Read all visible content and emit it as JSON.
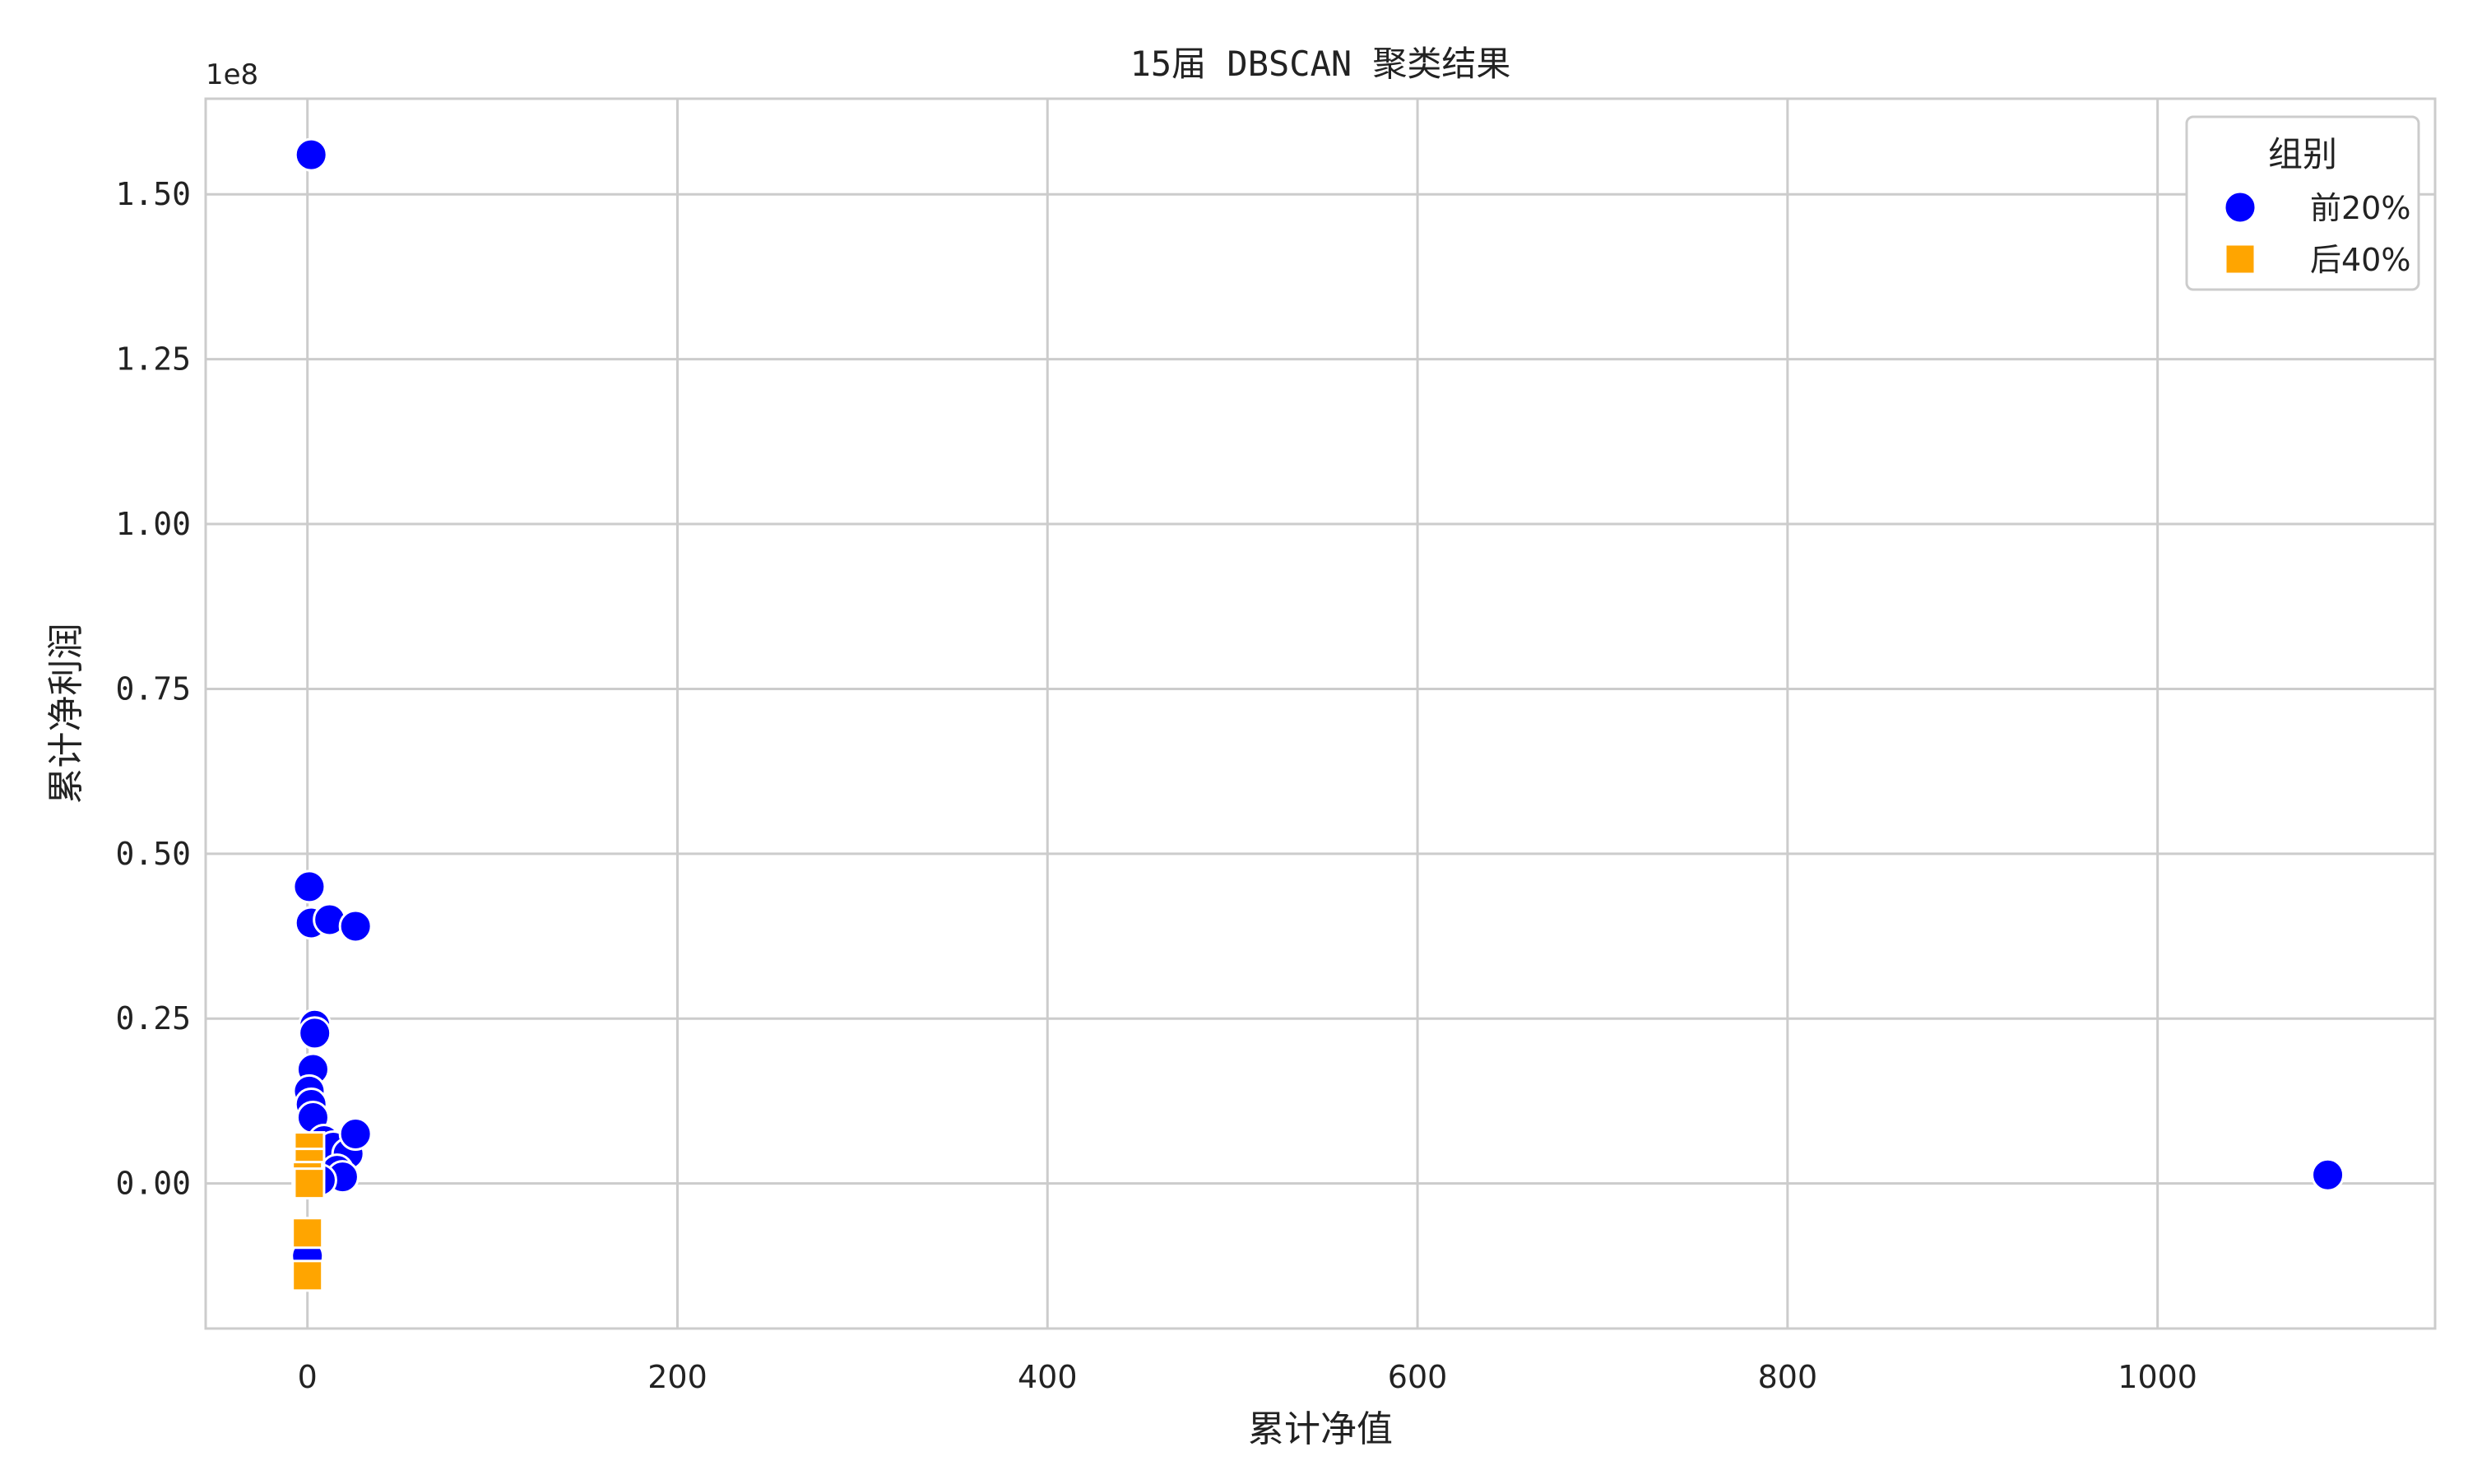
{
  "chart_data": {
    "type": "scatter",
    "title": "15届 DBSCAN 聚类结果",
    "xlabel": "累计净值",
    "ylabel": "累计净利润",
    "y_offset_label": "1e8",
    "xlim": [
      -55,
      1150
    ],
    "ylim": [
      -0.22,
      1.645
    ],
    "xticks": [
      0,
      200,
      400,
      600,
      800,
      1000
    ],
    "xtick_labels": [
      "0",
      "200",
      "400",
      "600",
      "800",
      "1000"
    ],
    "yticks": [
      0.0,
      0.25,
      0.5,
      0.75,
      1.0,
      1.25,
      1.5
    ],
    "ytick_labels": [
      "0.00",
      "0.25",
      "0.50",
      "0.75",
      "1.00",
      "1.25",
      "1.50"
    ],
    "grid": true,
    "legend": {
      "title": "组别",
      "placement": "top-right"
    },
    "series": [
      {
        "name": "前20%",
        "marker": "circle",
        "color": "#0000ff",
        "points": [
          {
            "x": 2,
            "y": 1.56
          },
          {
            "x": 1,
            "y": 0.45
          },
          {
            "x": 2,
            "y": 0.395
          },
          {
            "x": 12,
            "y": 0.4
          },
          {
            "x": 26,
            "y": 0.39
          },
          {
            "x": 4,
            "y": 0.24
          },
          {
            "x": 4,
            "y": 0.228
          },
          {
            "x": 3,
            "y": 0.173
          },
          {
            "x": 1,
            "y": 0.14
          },
          {
            "x": 2,
            "y": 0.12
          },
          {
            "x": 3,
            "y": 0.1
          },
          {
            "x": 9,
            "y": 0.065
          },
          {
            "x": 14,
            "y": 0.055
          },
          {
            "x": 22,
            "y": 0.045
          },
          {
            "x": 26,
            "y": 0.075
          },
          {
            "x": 16,
            "y": 0.02
          },
          {
            "x": 19,
            "y": 0.01
          },
          {
            "x": 7,
            "y": 0.005
          },
          {
            "x": 0,
            "y": -0.11
          },
          {
            "x": 1092,
            "y": 0.013
          }
        ]
      },
      {
        "name": "后40%",
        "marker": "square",
        "color": "#ffa500",
        "points": [
          {
            "x": 1,
            "y": 0.055
          },
          {
            "x": 1,
            "y": 0.03
          },
          {
            "x": 0,
            "y": 0.01
          },
          {
            "x": 1,
            "y": 0.0
          },
          {
            "x": 0,
            "y": -0.075
          },
          {
            "x": 0,
            "y": -0.14
          }
        ]
      }
    ]
  }
}
